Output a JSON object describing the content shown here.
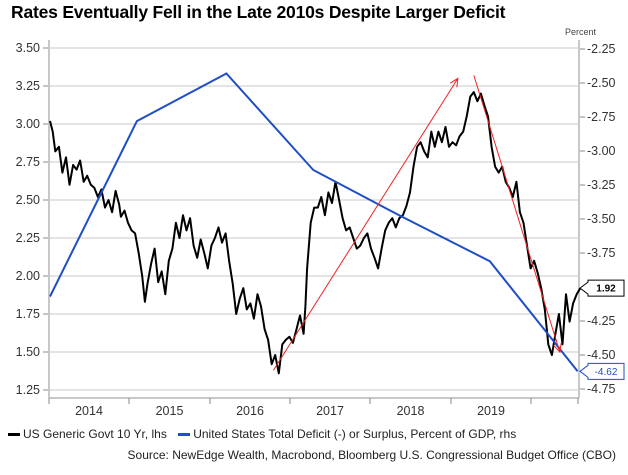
{
  "title": "Rates Eventually Fell in the Late 2010s Despite Larger Deficit",
  "unit_label": "Percent",
  "source": "Source: NewEdge Wealth, Macrobond, Bloomberg U.S. Congressional Budget Office (CBO)",
  "colors": {
    "rates": "#000000",
    "deficit": "#1f4fc4",
    "arrow": "#ee2222",
    "grid": "#c8c8c8"
  },
  "chart_data": {
    "type": "line",
    "title": "Rates Eventually Fell in the Late 2010s Despite Larger Deficit",
    "xlabel": "",
    "ylabel_left": "",
    "ylabel_right": "Percent",
    "x_tick_labels": [
      "2014",
      "2015",
      "2016",
      "2017",
      "2018",
      "2019"
    ],
    "x_range": [
      2014.0,
      2020.0
    ],
    "left_axis": {
      "range": [
        1.25,
        3.5
      ],
      "ticks": [
        "1.25",
        "1.50",
        "1.75",
        "2.00",
        "2.25",
        "2.50",
        "2.75",
        "3.00",
        "3.25",
        "3.50"
      ]
    },
    "right_axis": {
      "range": [
        -4.75,
        -2.25
      ],
      "ticks": [
        "-2.25",
        "-2.50",
        "-2.75",
        "-3.00",
        "-3.25",
        "-3.50",
        "-3.75",
        "-4.25",
        "-4.50",
        "-4.75"
      ]
    },
    "grid": true,
    "legend_position": "bottom-left",
    "series": [
      {
        "name": "US Generic Govt 10 Yr, lhs",
        "axis": "left",
        "x": [
          2014.0,
          2014.03,
          2014.06,
          2014.1,
          2014.14,
          2014.18,
          2014.22,
          2014.26,
          2014.3,
          2014.34,
          2014.38,
          2014.42,
          2014.46,
          2014.5,
          2014.54,
          2014.58,
          2014.62,
          2014.66,
          2014.7,
          2014.74,
          2014.78,
          2014.8,
          2014.84,
          2014.88,
          2014.92,
          2014.96,
          2015.0,
          2015.04,
          2015.07,
          2015.1,
          2015.14,
          2015.18,
          2015.22,
          2015.26,
          2015.3,
          2015.34,
          2015.38,
          2015.42,
          2015.46,
          2015.5,
          2015.54,
          2015.58,
          2015.62,
          2015.66,
          2015.7,
          2015.74,
          2015.78,
          2015.82,
          2015.86,
          2015.9,
          2015.94,
          2015.98,
          2016.02,
          2016.06,
          2016.1,
          2016.14,
          2016.18,
          2016.22,
          2016.26,
          2016.3,
          2016.34,
          2016.38,
          2016.42,
          2016.46,
          2016.5,
          2016.54,
          2016.58,
          2016.62,
          2016.66,
          2016.7,
          2016.74,
          2016.78,
          2016.82,
          2016.86,
          2016.88,
          2016.9,
          2016.94,
          2016.98,
          2017.02,
          2017.06,
          2017.1,
          2017.14,
          2017.18,
          2017.22,
          2017.26,
          2017.3,
          2017.34,
          2017.38,
          2017.42,
          2017.46,
          2017.5,
          2017.54,
          2017.58,
          2017.62,
          2017.66,
          2017.7,
          2017.74,
          2017.78,
          2017.82,
          2017.86,
          2017.9,
          2017.94,
          2017.98,
          2018.02,
          2018.06,
          2018.1,
          2018.14,
          2018.18,
          2018.22,
          2018.26,
          2018.3,
          2018.34,
          2018.38,
          2018.42,
          2018.46,
          2018.5,
          2018.54,
          2018.58,
          2018.62,
          2018.66,
          2018.7,
          2018.74,
          2018.78,
          2018.82,
          2018.86,
          2018.9,
          2018.94,
          2018.98,
          2019.02,
          2019.06,
          2019.1,
          2019.14,
          2019.18,
          2019.22,
          2019.26,
          2019.3,
          2019.34,
          2019.38,
          2019.42,
          2019.46,
          2019.5,
          2019.54,
          2019.58,
          2019.62,
          2019.66,
          2019.7,
          2019.74,
          2019.78,
          2019.82,
          2019.86,
          2019.9,
          2019.94,
          2019.98
        ],
        "y": [
          3.02,
          2.95,
          2.82,
          2.85,
          2.68,
          2.78,
          2.6,
          2.73,
          2.7,
          2.76,
          2.62,
          2.66,
          2.6,
          2.58,
          2.52,
          2.57,
          2.45,
          2.5,
          2.42,
          2.56,
          2.47,
          2.39,
          2.43,
          2.35,
          2.3,
          2.28,
          2.15,
          2.0,
          1.83,
          1.95,
          2.08,
          2.18,
          1.96,
          2.03,
          1.88,
          2.1,
          2.18,
          2.35,
          2.25,
          2.4,
          2.3,
          2.38,
          2.2,
          2.12,
          2.24,
          2.15,
          2.05,
          2.2,
          2.25,
          2.32,
          2.22,
          2.28,
          2.1,
          1.95,
          1.75,
          1.85,
          1.92,
          1.78,
          1.82,
          1.72,
          1.88,
          1.8,
          1.65,
          1.58,
          1.42,
          1.48,
          1.36,
          1.55,
          1.58,
          1.6,
          1.56,
          1.65,
          1.74,
          1.62,
          1.8,
          2.05,
          2.35,
          2.45,
          2.45,
          2.52,
          2.4,
          2.55,
          2.48,
          2.62,
          2.5,
          2.38,
          2.3,
          2.32,
          2.25,
          2.18,
          2.2,
          2.25,
          2.28,
          2.18,
          2.12,
          2.05,
          2.18,
          2.3,
          2.35,
          2.38,
          2.32,
          2.38,
          2.4,
          2.46,
          2.55,
          2.72,
          2.85,
          2.88,
          2.82,
          2.78,
          2.95,
          2.85,
          2.95,
          2.88,
          2.98,
          2.85,
          2.88,
          2.86,
          2.92,
          2.95,
          3.05,
          3.18,
          3.21,
          3.15,
          3.2,
          3.12,
          3.05,
          2.85,
          2.72,
          2.68,
          2.72,
          2.62,
          2.58,
          2.52,
          2.62,
          2.42,
          2.35,
          2.2,
          2.05,
          2.1,
          2.02,
          1.92,
          1.78,
          1.55,
          1.48,
          1.62,
          1.75,
          1.55,
          1.88,
          1.7,
          1.82,
          1.88,
          1.92
        ]
      },
      {
        "name": "United States Total Deficit (-) or Surplus, Percent of GDP, rhs",
        "axis": "right",
        "x": [
          2014.0,
          2014.98,
          2015.99,
          2016.97,
          2017.96,
          2018.96,
          2019.95
        ],
        "y": [
          -4.07,
          -2.78,
          -2.43,
          -3.14,
          -3.48,
          -3.81,
          -4.62
        ]
      }
    ],
    "annotations": [
      {
        "type": "arrow",
        "label": "rising-rates-arrow",
        "from": {
          "x": 2016.52,
          "y": 1.38
        },
        "to": {
          "x": 2018.6,
          "y": 3.3
        }
      },
      {
        "type": "arrow",
        "label": "falling-rates-arrow",
        "from": {
          "x": 2018.78,
          "y": 3.32
        },
        "to": {
          "x": 2019.75,
          "y": 1.5
        }
      }
    ],
    "last_value_labels": [
      {
        "series": "US Generic Govt 10 Yr, lhs",
        "text": "1.92"
      },
      {
        "series": "United States Total Deficit (-) or Surplus, Percent of GDP, rhs",
        "text": "-4.62"
      }
    ]
  },
  "legend": [
    {
      "label": "US Generic Govt 10 Yr, lhs"
    },
    {
      "label": "United States Total Deficit (-) or Surplus, Percent of GDP, rhs"
    }
  ]
}
